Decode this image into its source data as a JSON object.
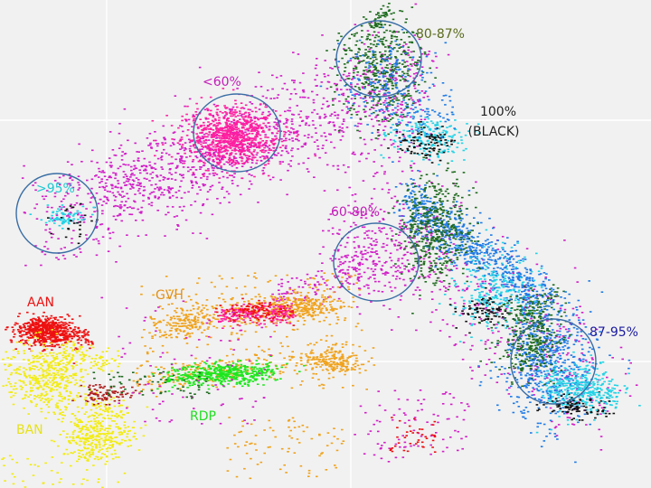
{
  "chart_data": {
    "type": "scatter",
    "grid": true,
    "colors": {
      "background": "#f1f1f1",
      "gridline": "#ffffff",
      "circle": "#3a6ea5",
      "dark_green": "#1f6b1f",
      "blue": "#1e7be6",
      "cyan": "#22d3e6",
      "magenta": "#d21ec8",
      "pink": "#ff1fa0",
      "black": "#111111",
      "red": "#ee1111",
      "yellow": "#f2ec10",
      "orange": "#f0a21c",
      "green": "#1ee61e",
      "dark_red": "#b01e1e"
    },
    "annotations": [
      {
        "key": "a8087",
        "text": "80-87%",
        "color": "#5a6b1c"
      },
      {
        "key": "alt60",
        "text": "<60%",
        "color": "#c21eb8"
      },
      {
        "key": "a100",
        "text": "100%",
        "color": "#222222"
      },
      {
        "key": "ablack",
        "text": "(BLACK)",
        "color": "#222222"
      },
      {
        "key": "agt95",
        "text": ">95%",
        "color": "#1ec8d2"
      },
      {
        "key": "a6080",
        "text": "60-80%",
        "color": "#c21eb8"
      },
      {
        "key": "aaan",
        "text": "AAN",
        "color": "#ee1111"
      },
      {
        "key": "agvh",
        "text": "GVH",
        "color": "#e2901a"
      },
      {
        "key": "a8795",
        "text": "87-95%",
        "color": "#1a1aa0"
      },
      {
        "key": "ardp",
        "text": "RDP",
        "color": "#22dd22"
      },
      {
        "key": "aban",
        "text": "BAN",
        "color": "#e6e21a"
      }
    ]
  }
}
